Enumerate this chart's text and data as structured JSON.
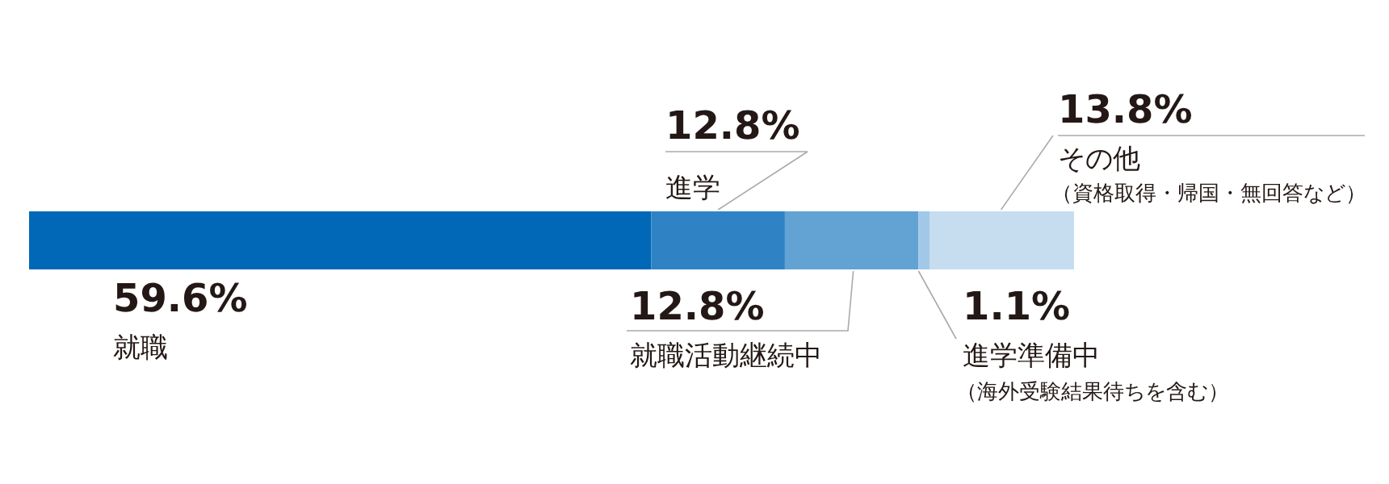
{
  "chart_data": {
    "type": "bar",
    "orientation": "horizontal",
    "stacked": true,
    "categories": [
      null
    ],
    "series": [
      {
        "name": "就職",
        "color": "#0068b7",
        "values": [
          59.6
        ],
        "value_labels": [
          "59.6%"
        ]
      },
      {
        "name": "進学",
        "color": "#2f83c5",
        "values": [
          12.8
        ],
        "value_labels": [
          "12.8%"
        ]
      },
      {
        "name": "就職活動継続中",
        "color": "#62a3d4",
        "values": [
          12.8
        ],
        "value_labels": [
          "12.8%"
        ]
      },
      {
        "name": "進学準備中",
        "color": "#a2c8e8",
        "values": [
          1.1
        ],
        "value_labels": [
          "1.1%"
        ]
      },
      {
        "name": "その他",
        "color": "#c6ddf0",
        "values": [
          13.8
        ],
        "value_labels": [
          "13.8%"
        ]
      }
    ],
    "annotations": [
      "（資格取得・帰国・無回答など）",
      "（海外受験結果待ちを含む）"
    ]
  }
}
